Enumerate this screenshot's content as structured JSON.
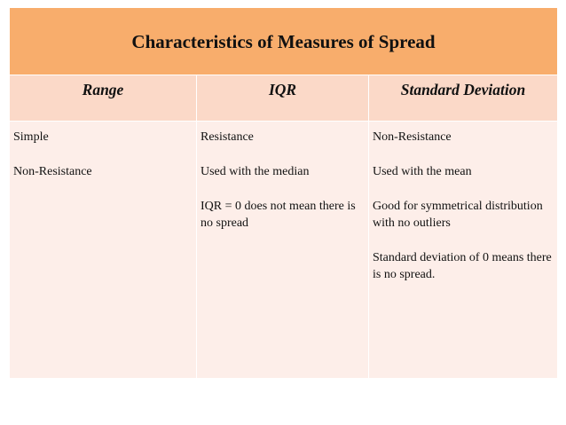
{
  "table": {
    "title": "Characteristics of Measures of Spread",
    "columns": [
      "Range",
      "IQR",
      "Standard Deviation"
    ],
    "cells": [
      [
        "Simple",
        "Non-Resistance"
      ],
      [
        "Resistance",
        "Used with the median",
        "IQR = 0 does not mean there is no spread"
      ],
      [
        "Non-Resistance",
        "Used with the mean",
        "Good for symmetrical distribution with no outliers",
        "Standard deviation of 0 means there is no spread."
      ]
    ]
  },
  "colors": {
    "title_bg": "#f8ad6c",
    "header_bg": "#fbd9c8",
    "body_bg": "#fdeee9"
  }
}
